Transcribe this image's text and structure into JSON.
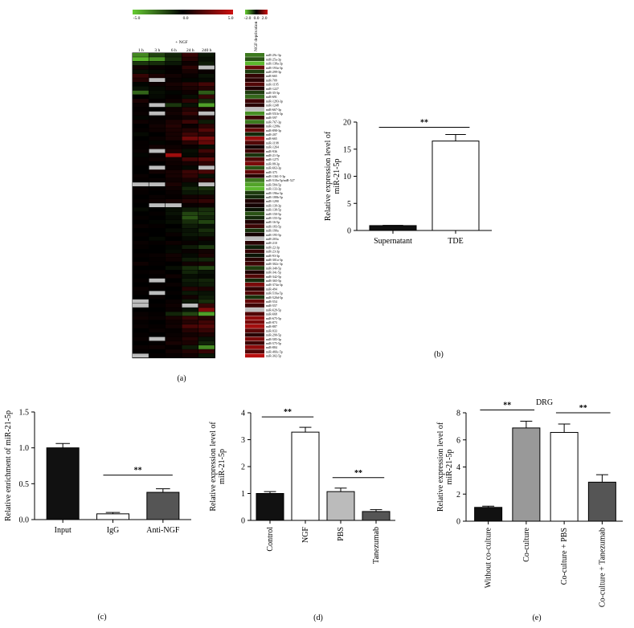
{
  "panel_labels": [
    "(a)",
    "(b)",
    "(c)",
    "(d)",
    "(e)"
  ],
  "colors": {
    "black": "#111111",
    "white": "#ffffff",
    "dark_gray": "#555555",
    "mid_gray": "#999999",
    "heat_low": "#66cc33",
    "heat_mid": "#000000",
    "heat_high": "#cc1111"
  },
  "chart_data": [
    {
      "panel": "(a)",
      "type": "heatmap",
      "scale_labels_main": [
        "-5.0",
        "0.0",
        "5.0"
      ],
      "scale_labels_side": [
        "-2.0",
        "0.0",
        "2.0"
      ],
      "group_label": "+ NGF",
      "columns": [
        "1 h",
        "3 h",
        "6 h",
        "24 h",
        "240 h"
      ],
      "side_column": "NGF deprivation",
      "rows": [
        "miR-29c-3p",
        "miR-25a-3p",
        "miR-138a-3p",
        "miR-193a-3p",
        "miR-299-3p",
        "miR-665",
        "miR-709",
        "miR-1195",
        "miR-1227",
        "miR-35-3p",
        "miR-691",
        "miR-1283-3p",
        "miR-1248",
        "miR-667-3p",
        "miR-551b-3p",
        "miR-597",
        "miR-767-3p",
        "miR-1298a",
        "miR-898-3p",
        "miR-207",
        "miR-665",
        "miR-1198",
        "miR-1264",
        "miR-936",
        "miR-21-5p",
        "miR-1275",
        "miR-98-3p",
        "miR-663-3p",
        "miR-375",
        "miR-1361-5-3p",
        "miR-518a-5p/miR-527",
        "miR-584-5p",
        "miR-133-3p",
        "miR-196a-3p",
        "miR-188b-5p",
        "miR-1290",
        "miR-139-3p",
        "miR-138-5p",
        "miR-150-5p",
        "miR-155-5p",
        "miR-16-5p",
        "miR-183-5p",
        "miR-190a",
        "miR-195-5p",
        "miR-203a",
        "miR-210",
        "miR-22-3p",
        "miR-23-3p",
        "miR-93-3p",
        "miR-301a-3p",
        "miR-302c-3p",
        "miR-340-5p",
        "miR-34c-5p",
        "miR-342-5p",
        "miR-365-5p",
        "miR-374a-3p",
        "miR-494",
        "miR-516a-5p",
        "miR-520d-5p",
        "miR-554",
        "miR-557",
        "miR-629-5p",
        "miR-668",
        "miR-675-5p",
        "miR-873",
        "miR-887",
        "miR-933",
        "miR-290-5p",
        "miR-585-3p",
        "miR-575-5p",
        "miR-884",
        "miR-466c-5p",
        "miR-302-5p"
      ],
      "values": [
        [
          -3.0,
          -1.5,
          -0.8,
          1.2,
          -0.5
        ],
        [
          -4.0,
          -3.2,
          -1.0,
          0.8,
          -0.3
        ],
        [
          -1.2,
          -1.0,
          -0.5,
          0.3,
          -0.6
        ],
        [
          0.4,
          0.2,
          0.1,
          1.0,
          "n/a"
        ],
        [
          -0.3,
          -0.2,
          0.1,
          0.5,
          0.2
        ],
        [
          1.2,
          0.6,
          0.4,
          0.2,
          -0.4
        ],
        [
          0.8,
          "n/a",
          0.2,
          -0.1,
          -0.2
        ],
        [
          -0.1,
          0.3,
          0.5,
          0.9,
          1.5
        ],
        [
          -0.4,
          -0.2,
          0.3,
          0.6,
          0.8
        ],
        [
          -2.2,
          -0.3,
          -0.1,
          0.3,
          -2.0
        ],
        [
          0.0,
          -0.2,
          0.1,
          -0.3,
          1.2
        ],
        [
          0.6,
          0.1,
          0.3,
          1.0,
          -1.0
        ],
        [
          0.2,
          "n/a",
          -1.2,
          -0.4,
          -3.5
        ],
        [
          0.1,
          0.0,
          0.3,
          0.8,
          0.5
        ],
        [
          0.2,
          "n/a",
          0.4,
          1.2,
          "n/a"
        ],
        [
          -0.1,
          0.1,
          0.2,
          0.4,
          0.6
        ],
        [
          0.3,
          0.2,
          0.6,
          1.3,
          -0.6
        ],
        [
          0.0,
          0.4,
          0.8,
          0.2,
          1.0
        ],
        [
          0.1,
          0.3,
          0.6,
          0.8,
          1.8
        ],
        [
          -0.2,
          0.0,
          0.5,
          1.4,
          0.9
        ],
        [
          0.0,
          0.2,
          0.5,
          2.5,
          2.6
        ],
        [
          0.1,
          -0.1,
          0.1,
          0.9,
          2.2
        ],
        [
          0.1,
          0.4,
          0.3,
          0.2,
          -0.3
        ],
        [
          0.2,
          "n/a",
          0.6,
          -0.3,
          1.4
        ],
        [
          -0.1,
          0.2,
          3.5,
          -0.2,
          0.6
        ],
        [
          0.1,
          0.3,
          0.4,
          1.5,
          2.0
        ],
        [
          0.1,
          0.0,
          0.3,
          0.5,
          1.0
        ],
        [
          0.0,
          "n/a",
          0.2,
          -0.2,
          "n/a"
        ],
        [
          0.0,
          0.4,
          0.5,
          1.3,
          1.6
        ],
        [
          0.2,
          0.0,
          0.5,
          1.1,
          -0.4
        ],
        [
          0.1,
          0.2,
          0.3,
          0.5,
          0.9
        ],
        [
          "n/a",
          "n/a",
          0.6,
          -0.3,
          "n/a"
        ],
        [
          0.2,
          0.1,
          0.3,
          -0.8,
          -1.0
        ],
        [
          0.1,
          0.0,
          0.2,
          -0.5,
          -0.6
        ],
        [
          0.0,
          0.2,
          0.1,
          0.4,
          0.5
        ],
        [
          0.1,
          0.3,
          0.5,
          0.8,
          1.1
        ],
        [
          0.0,
          "n/a",
          "n/a",
          0.2,
          0.3
        ],
        [
          -0.2,
          0.0,
          -0.3,
          -0.6,
          -1.0
        ],
        [
          0.0,
          0.1,
          -0.4,
          -1.5,
          -1.2
        ],
        [
          0.1,
          0.0,
          -0.2,
          -1.8,
          -0.8
        ],
        [
          0.0,
          -0.1,
          -0.3,
          -1.0,
          -1.5
        ],
        [
          0.2,
          0.1,
          0.0,
          -0.6,
          -0.4
        ],
        [
          0.0,
          0.0,
          -0.2,
          -0.4,
          -1.0
        ],
        [
          0.1,
          0.0,
          0.2,
          -0.5,
          -0.6
        ],
        [
          0.0,
          -0.2,
          0.0,
          -0.2,
          0.3
        ],
        [
          0.2,
          0.1,
          0.3,
          0.2,
          -0.2
        ],
        [
          0.1,
          0.0,
          -0.1,
          -0.6,
          -1.2
        ],
        [
          0.0,
          0.0,
          -0.2,
          0.2,
          0.4
        ],
        [
          0.1,
          0.2,
          0.4,
          -0.2,
          0.6
        ],
        [
          0.0,
          0.1,
          0.3,
          -0.6,
          -0.8
        ],
        [
          0.3,
          0.1,
          0.0,
          0.4,
          0.5
        ],
        [
          0.0,
          0.0,
          -0.3,
          -1.0,
          -1.5
        ],
        [
          0.1,
          0.2,
          0.0,
          -0.8,
          -0.4
        ],
        [
          0.0,
          0.1,
          0.3,
          -0.3,
          -0.2
        ],
        [
          0.1,
          "n/a",
          0.0,
          -0.6,
          -0.8
        ],
        [
          0.0,
          0.1,
          0.2,
          -0.4,
          -0.6
        ],
        [
          0.2,
          0.1,
          0.0,
          0.8,
          0.6
        ],
        [
          0.1,
          "n/a",
          0.1,
          -0.5,
          -0.4
        ],
        [
          0.0,
          0.2,
          0.0,
          0.4,
          -0.6
        ],
        [
          "n/a",
          0.0,
          0.2,
          -0.6,
          -1.0
        ],
        [
          "n/a",
          0.1,
          0.3,
          "n/a",
          1.2
        ],
        [
          0.0,
          0.0,
          0.2,
          -0.4,
          2.8
        ],
        [
          0.2,
          0.1,
          -0.8,
          -1.5,
          -3.5
        ],
        [
          0.3,
          0.2,
          0.5,
          1.2,
          0.8
        ],
        [
          0.1,
          0.0,
          0.3,
          0.8,
          1.4
        ],
        [
          0.2,
          0.1,
          0.4,
          1.6,
          1.8
        ],
        [
          0.0,
          0.2,
          0.1,
          0.8,
          1.2
        ],
        [
          0.1,
          0.0,
          0.2,
          0.4,
          0.6
        ],
        [
          0.2,
          "n/a",
          0.3,
          0.8,
          -0.4
        ],
        [
          0.0,
          0.1,
          0.5,
          0.6,
          -0.8
        ],
        [
          0.2,
          0.3,
          0.1,
          -0.6,
          -3.0
        ],
        [
          0.1,
          0.0,
          0.4,
          0.8,
          1.2
        ],
        [
          "n/a",
          0.1,
          0.2,
          0.4,
          -0.5
        ]
      ],
      "side_values": [
        -1.2,
        -0.8,
        -1.8,
        1.0,
        -0.6,
        0.5,
        0.4,
        0.8,
        0.3,
        -0.6,
        -1.0,
        0.6,
        0.4,
        "n/a",
        -1.4,
        0.6,
        -1.2,
        0.4,
        1.0,
        -0.4,
        1.5,
        0.8,
        0.2,
        0.6,
        -0.5,
        0.8,
        1.2,
        -0.8,
        1.0,
        0.4,
        -1.2,
        -1.6,
        -1.8,
        -0.6,
        -0.4,
        0.3,
        0.2,
        -0.2,
        -0.8,
        -0.4,
        0.3,
        0.6,
        -0.5,
        0.2,
        "n/a",
        0.4,
        -0.3,
        0.5,
        -0.2,
        0.4,
        0.6,
        -0.6,
        0.3,
        0.8,
        -0.4,
        1.2,
        0.5,
        0.8,
        -0.5,
        1.0,
        0.6,
        "n/a",
        0.8,
        1.4,
        1.2,
        1.6,
        0.9,
        0.4,
        1.2,
        0.6,
        1.4,
        0.8,
        1.8
      ]
    },
    {
      "panel": "(b)",
      "type": "bar",
      "categories": [
        "Supernatant",
        "TDE"
      ],
      "values": [
        0.9,
        16.5
      ],
      "errors": [
        0.05,
        1.2
      ],
      "fills": [
        "#111111",
        "#ffffff"
      ],
      "ylim": [
        0,
        20
      ],
      "yticks": [
        0,
        5,
        10,
        15,
        20
      ],
      "ylabel": [
        "Relative expression level of",
        "miR-21-5p"
      ],
      "significance": [
        {
          "from": 0,
          "to": 1,
          "label": "**"
        }
      ]
    },
    {
      "panel": "(c)",
      "type": "bar",
      "categories": [
        "Input",
        "IgG",
        "Anti-NGF"
      ],
      "values": [
        1.0,
        0.08,
        0.38
      ],
      "errors": [
        0.06,
        0.02,
        0.05
      ],
      "fills": [
        "#111111",
        "#ffffff",
        "#555555"
      ],
      "ylim": [
        0,
        1.5
      ],
      "yticks": [
        "0.0",
        "0.5",
        "1.0",
        "1.5"
      ],
      "ylabel": [
        "Relative enrichment of miR-21-5p"
      ],
      "significance": [
        {
          "from": 1,
          "to": 2,
          "label": "**"
        }
      ]
    },
    {
      "panel": "(d)",
      "type": "bar",
      "categories": [
        "Control",
        "NGF",
        "PBS",
        "Tanezumab"
      ],
      "values": [
        1.0,
        3.28,
        1.07,
        0.33
      ],
      "errors": [
        0.07,
        0.18,
        0.13,
        0.07
      ],
      "fills": [
        "#111111",
        "#ffffff",
        "#bbbbbb",
        "#555555"
      ],
      "ylim": [
        0,
        4
      ],
      "yticks": [
        0,
        1,
        2,
        3,
        4
      ],
      "ylabel": [
        "Relative expression level of",
        "miR-21-5p"
      ],
      "significance": [
        {
          "from": 0,
          "to": 1,
          "label": "**"
        },
        {
          "from": 2,
          "to": 3,
          "label": "**"
        }
      ]
    },
    {
      "panel": "(e)",
      "type": "bar",
      "title": "DRG",
      "categories": [
        "Without co-culture",
        "Co-culture",
        "Co-culture + PBS",
        "Co-culture + Tanezumab"
      ],
      "values": [
        1.02,
        6.88,
        6.55,
        2.88
      ],
      "errors": [
        0.09,
        0.5,
        0.62,
        0.55
      ],
      "fills": [
        "#111111",
        "#999999",
        "#ffffff",
        "#555555"
      ],
      "ylim": [
        0,
        8
      ],
      "yticks": [
        0,
        2,
        4,
        6,
        8
      ],
      "ylabel": [
        "Relative expression level of",
        "miR-21-5p"
      ],
      "significance": [
        {
          "from": 0,
          "to": 1,
          "label": "**"
        },
        {
          "from": 2,
          "to": 3,
          "label": "**"
        }
      ]
    }
  ]
}
